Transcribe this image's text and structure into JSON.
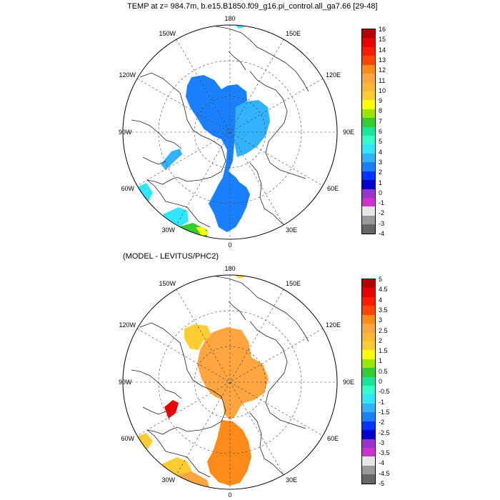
{
  "top_panel": {
    "title": "TEMP at z= 984.7m, b.e15.B1850.f09_g16.pi_control.all_ga7.66 [29-48]",
    "lon_labels": {
      "top": "180",
      "bottom": "0",
      "left": "90W",
      "right": "90E",
      "tl": "150W",
      "tr": "150E",
      "ul": "120W",
      "ur": "120E",
      "ll": "60W",
      "lr": "60E",
      "bl": "30W",
      "br": "30E"
    },
    "colorbar": {
      "labels": [
        "16",
        "15",
        "14",
        "13",
        "12",
        "11",
        "10",
        "9",
        "8",
        "7",
        "6",
        "5",
        "4",
        "3",
        "2",
        "1",
        "0",
        "-1",
        "-2",
        "-3",
        "-4"
      ],
      "colors": [
        "#b30000",
        "#e60000",
        "#ff1a00",
        "#ff4500",
        "#ff8c1a",
        "#ffa640",
        "#ffb833",
        "#ffcc33",
        "#ffff00",
        "#99e600",
        "#33cc33",
        "#1ae699",
        "#33ffcc",
        "#33e6ff",
        "#33b3ff",
        "#1a80ff",
        "#0033ff",
        "#0000cc",
        "#9933cc",
        "#cc33cc",
        "#e6e6e6",
        "#999999",
        "#666666"
      ]
    }
  },
  "bottom_panel": {
    "title": "(MODEL - LEVITUS/PHC2)",
    "lon_labels": {
      "top": "180",
      "bottom": "0",
      "left": "90W",
      "right": "90E",
      "tl": "150W",
      "tr": "150E",
      "ul": "120W",
      "ur": "120E",
      "ll": "60W",
      "lr": "60E",
      "bl": "30W",
      "br": "30E"
    },
    "colorbar": {
      "labels": [
        "5",
        "4.5",
        "4",
        "3.5",
        "3",
        "2.5",
        "2",
        "1.5",
        "1",
        "0.5",
        "0",
        "-0.5",
        "-1",
        "-1.5",
        "-2",
        "-2.5",
        "-3",
        "-3.5",
        "-4",
        "-4.5",
        "-5"
      ],
      "colors": [
        "#b30000",
        "#e60000",
        "#ff1a00",
        "#ff4500",
        "#ff8c1a",
        "#ffa640",
        "#ffb833",
        "#ffcc33",
        "#ffff00",
        "#99e600",
        "#33cc33",
        "#1ae699",
        "#33ffcc",
        "#33e6ff",
        "#33b3ff",
        "#1a80ff",
        "#0033ff",
        "#0000cc",
        "#9933cc",
        "#cc33cc",
        "#e6e6e6",
        "#999999",
        "#666666"
      ]
    }
  }
}
